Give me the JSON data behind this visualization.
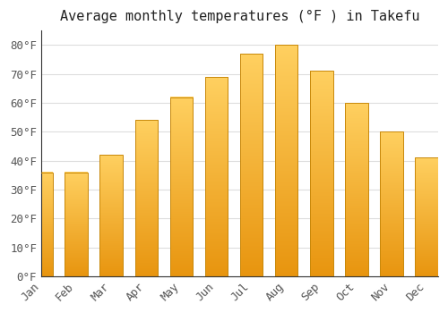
{
  "title": "Average monthly temperatures (°F ) in Takefu",
  "months": [
    "Jan",
    "Feb",
    "Mar",
    "Apr",
    "May",
    "Jun",
    "Jul",
    "Aug",
    "Sep",
    "Oct",
    "Nov",
    "Dec"
  ],
  "values": [
    36,
    36,
    42,
    54,
    62,
    69,
    77,
    80,
    71,
    60,
    50,
    41
  ],
  "bar_color_bottom": "#F5A623",
  "bar_color_top": "#FFD966",
  "bar_edge_color": "#C8880A",
  "background_color": "#FFFFFF",
  "plot_bg_color": "#FFFFFF",
  "grid_color": "#DDDDDD",
  "ylim": [
    0,
    85
  ],
  "yticks": [
    0,
    10,
    20,
    30,
    40,
    50,
    60,
    70,
    80
  ],
  "ylabel_suffix": "°F",
  "title_fontsize": 11,
  "tick_fontsize": 9,
  "font_family": "monospace",
  "tick_color": "#555555",
  "title_color": "#222222",
  "bar_width": 0.65
}
